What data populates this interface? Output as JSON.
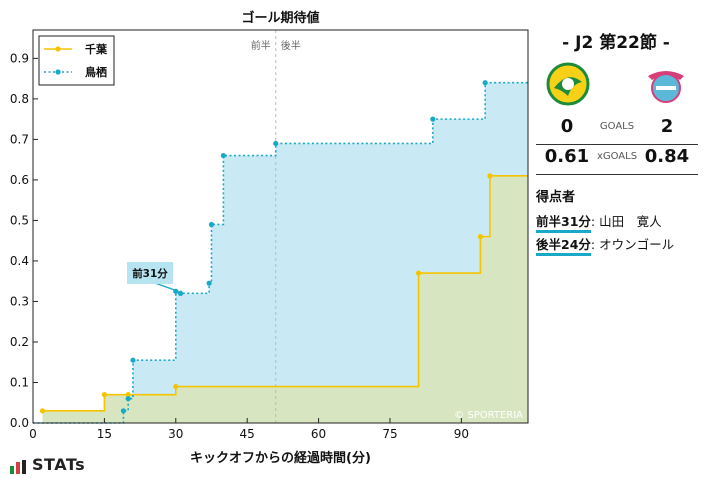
{
  "chart_data": {
    "type": "line",
    "title": "ゴール期待値",
    "xlabel": "キックオフからの経過時間(分)",
    "ylabel": "",
    "xlim": [
      0,
      104
    ],
    "ylim": [
      0,
      0.97
    ],
    "x_ticks": [
      0,
      15,
      30,
      45,
      60,
      75,
      90
    ],
    "y_ticks": [
      0.0,
      0.1,
      0.2,
      0.3,
      0.4,
      0.5,
      0.6,
      0.7,
      0.8,
      0.9
    ],
    "step": true,
    "halftime_x": 51,
    "halftime_labels": [
      "前半",
      "後半"
    ],
    "legend": "top-left",
    "watermark": "© SPORTERIA",
    "series": [
      {
        "name": "千葉",
        "color": "#f5c400",
        "fill": "#d7e6c0",
        "line_style": "solid",
        "points": [
          [
            2,
            0.03
          ],
          [
            15,
            0.07
          ],
          [
            20,
            0.07
          ],
          [
            30,
            0.09
          ],
          [
            81,
            0.37
          ],
          [
            94,
            0.46
          ],
          [
            96,
            0.61
          ],
          [
            104,
            0.61
          ]
        ]
      },
      {
        "name": "鳥栖",
        "color": "#18a9c7",
        "fill": "#c9e9f4",
        "line_style": "dotted",
        "points": [
          [
            0,
            0
          ],
          [
            19,
            0.03
          ],
          [
            20,
            0.06
          ],
          [
            21,
            0.155
          ],
          [
            30,
            0.325
          ],
          [
            31,
            0.32
          ],
          [
            37,
            0.345
          ],
          [
            37.5,
            0.49
          ],
          [
            40,
            0.66
          ],
          [
            51,
            0.69
          ],
          [
            84,
            0.75
          ],
          [
            95,
            0.84
          ],
          [
            104,
            0.84
          ]
        ]
      }
    ],
    "annotations": [
      {
        "text": "前31分",
        "x": 31,
        "y": 0.32
      }
    ]
  },
  "match": {
    "title": "- J2 第22節 -",
    "home_team_logo": "chiba-logo",
    "away_team_logo": "tosu-logo",
    "goals_label": "GOALS",
    "xgoals_label": "xGOALS",
    "home_goals": "0",
    "away_goals": "2",
    "home_xg": "0.61",
    "away_xg": "0.84"
  },
  "scorers": {
    "title": "得点者",
    "items": [
      {
        "time": "前半31分",
        "name": ": 山田　寛人"
      },
      {
        "time": "後半24分",
        "name": ": オウンゴール"
      }
    ]
  },
  "brand": "STATs"
}
